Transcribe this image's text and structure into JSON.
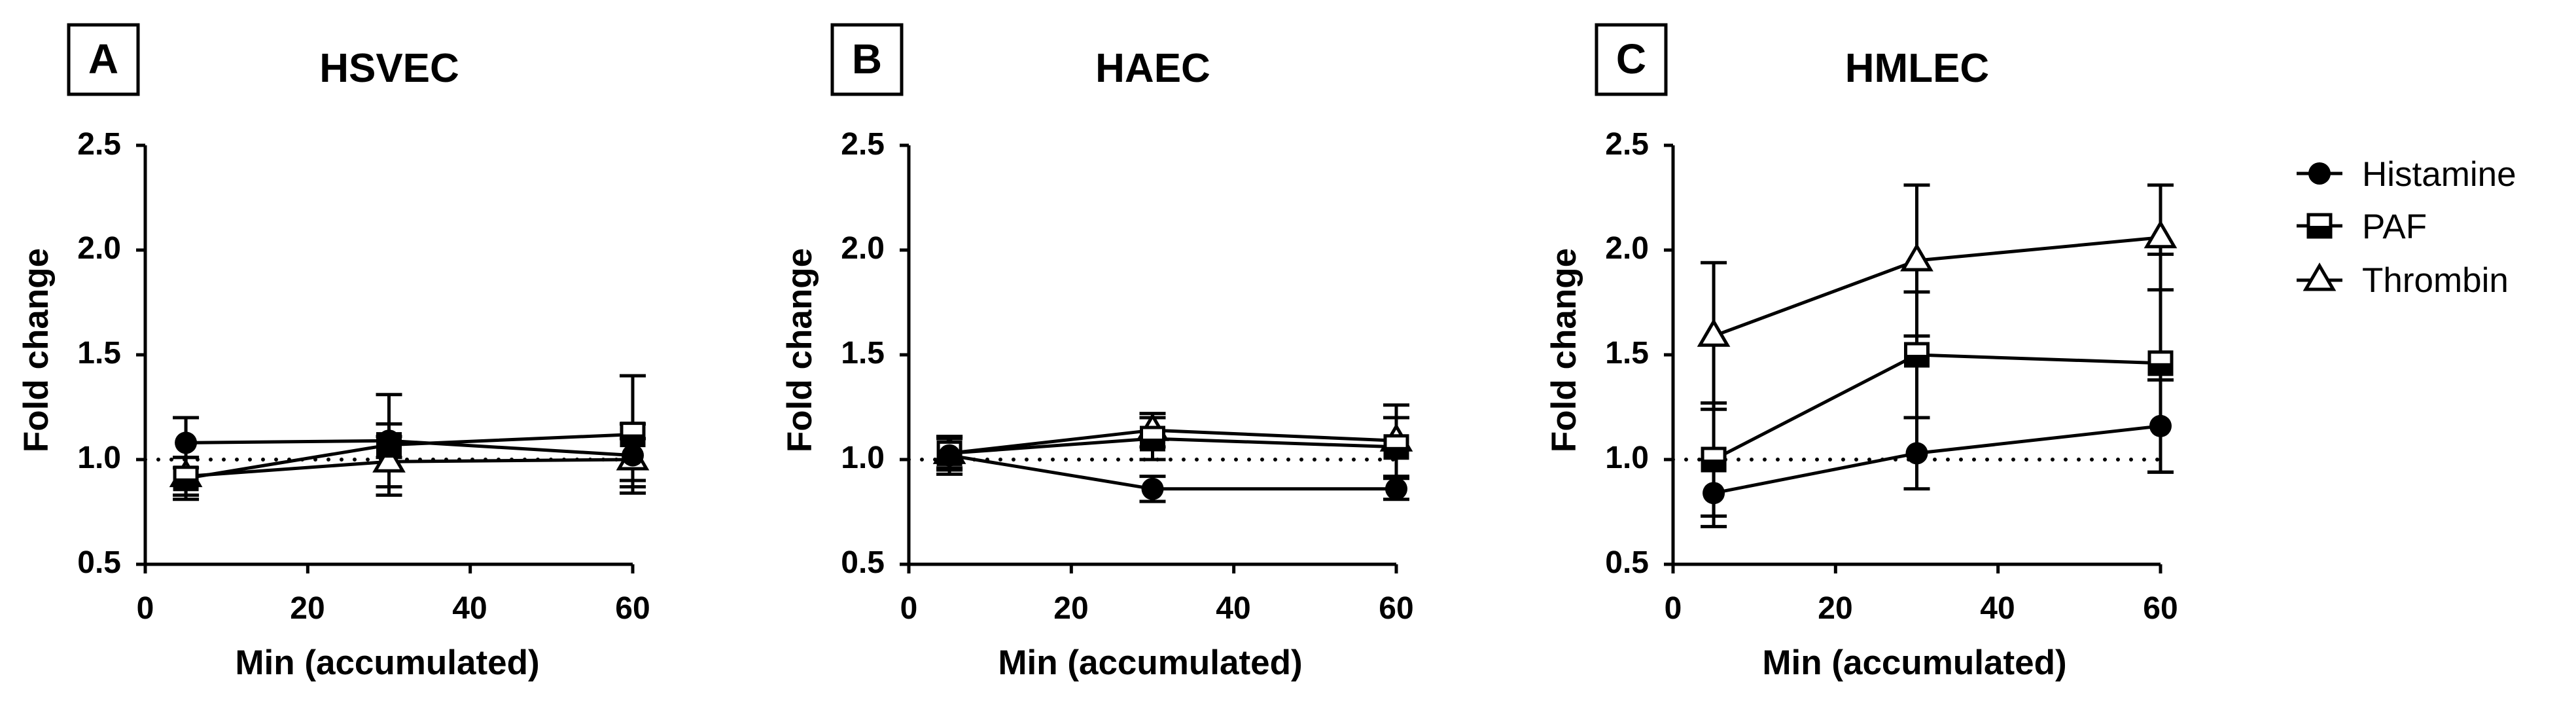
{
  "chart_data": [
    {
      "type": "line",
      "panel_letter": "A",
      "title": "HSVEC",
      "xlabel": "Min (accumulated)",
      "ylabel": "Fold change",
      "xlim": [
        0,
        60
      ],
      "ylim": [
        0.5,
        2.5
      ],
      "xticks": [
        "0",
        "20",
        "40",
        "60"
      ],
      "yticks": [
        "0.5",
        "1.0",
        "1.5",
        "2.0",
        "2.5"
      ],
      "reference_line": 1.0,
      "x": [
        5,
        30,
        60
      ],
      "series": [
        {
          "name": "Histamine",
          "values": [
            1.08,
            1.09,
            1.02
          ],
          "errors": [
            0.12,
            0.08,
            0.15
          ]
        },
        {
          "name": "PAF",
          "values": [
            0.91,
            1.07,
            1.12
          ],
          "errors": [
            0.1,
            0.24,
            0.28
          ]
        },
        {
          "name": "Thrombin",
          "values": [
            0.92,
            0.99,
            1.0
          ],
          "errors": [
            0.09,
            0.12,
            0.1
          ]
        }
      ]
    },
    {
      "type": "line",
      "panel_letter": "B",
      "title": "HAEC",
      "xlabel": "Min (accumulated)",
      "ylabel": "Fold change",
      "xlim": [
        0,
        60
      ],
      "ylim": [
        0.5,
        2.5
      ],
      "xticks": [
        "0",
        "20",
        "40",
        "60"
      ],
      "yticks": [
        "0.5",
        "1.0",
        "1.5",
        "2.0",
        "2.5"
      ],
      "reference_line": 1.0,
      "x": [
        5,
        30,
        60
      ],
      "series": [
        {
          "name": "Histamine",
          "values": [
            1.02,
            0.86,
            0.86
          ],
          "errors": [
            0.09,
            0.06,
            0.05
          ]
        },
        {
          "name": "PAF",
          "values": [
            1.03,
            1.1,
            1.06
          ],
          "errors": [
            0.07,
            0.1,
            0.14
          ]
        },
        {
          "name": "Thrombin",
          "values": [
            1.03,
            1.14,
            1.09
          ],
          "errors": [
            0.08,
            0.08,
            0.17
          ]
        }
      ]
    },
    {
      "type": "line",
      "panel_letter": "C",
      "title": "HMLEC",
      "xlabel": "Min (accumulated)",
      "ylabel": "Fold change",
      "xlim": [
        0,
        60
      ],
      "ylim": [
        0.5,
        2.5
      ],
      "xticks": [
        "0",
        "20",
        "40",
        "60"
      ],
      "yticks": [
        "0.5",
        "1.0",
        "1.5",
        "2.0",
        "2.5"
      ],
      "reference_line": 1.0,
      "x": [
        5,
        30,
        60
      ],
      "series": [
        {
          "name": "Histamine",
          "values": [
            0.84,
            1.03,
            1.16
          ],
          "errors": [
            0.16,
            0.17,
            0.22
          ]
        },
        {
          "name": "PAF",
          "values": [
            1.0,
            1.5,
            1.46
          ],
          "errors": [
            0.27,
            0.3,
            0.52
          ]
        },
        {
          "name": "Thrombin",
          "values": [
            1.59,
            1.95,
            2.06
          ],
          "errors": [
            0.35,
            0.36,
            0.25
          ]
        }
      ]
    }
  ],
  "legend": {
    "placement": "right",
    "items": [
      {
        "label": "Histamine",
        "marker": "filled-circle"
      },
      {
        "label": "PAF",
        "marker": "half-filled-square"
      },
      {
        "label": "Thrombin",
        "marker": "open-triangle"
      }
    ]
  }
}
